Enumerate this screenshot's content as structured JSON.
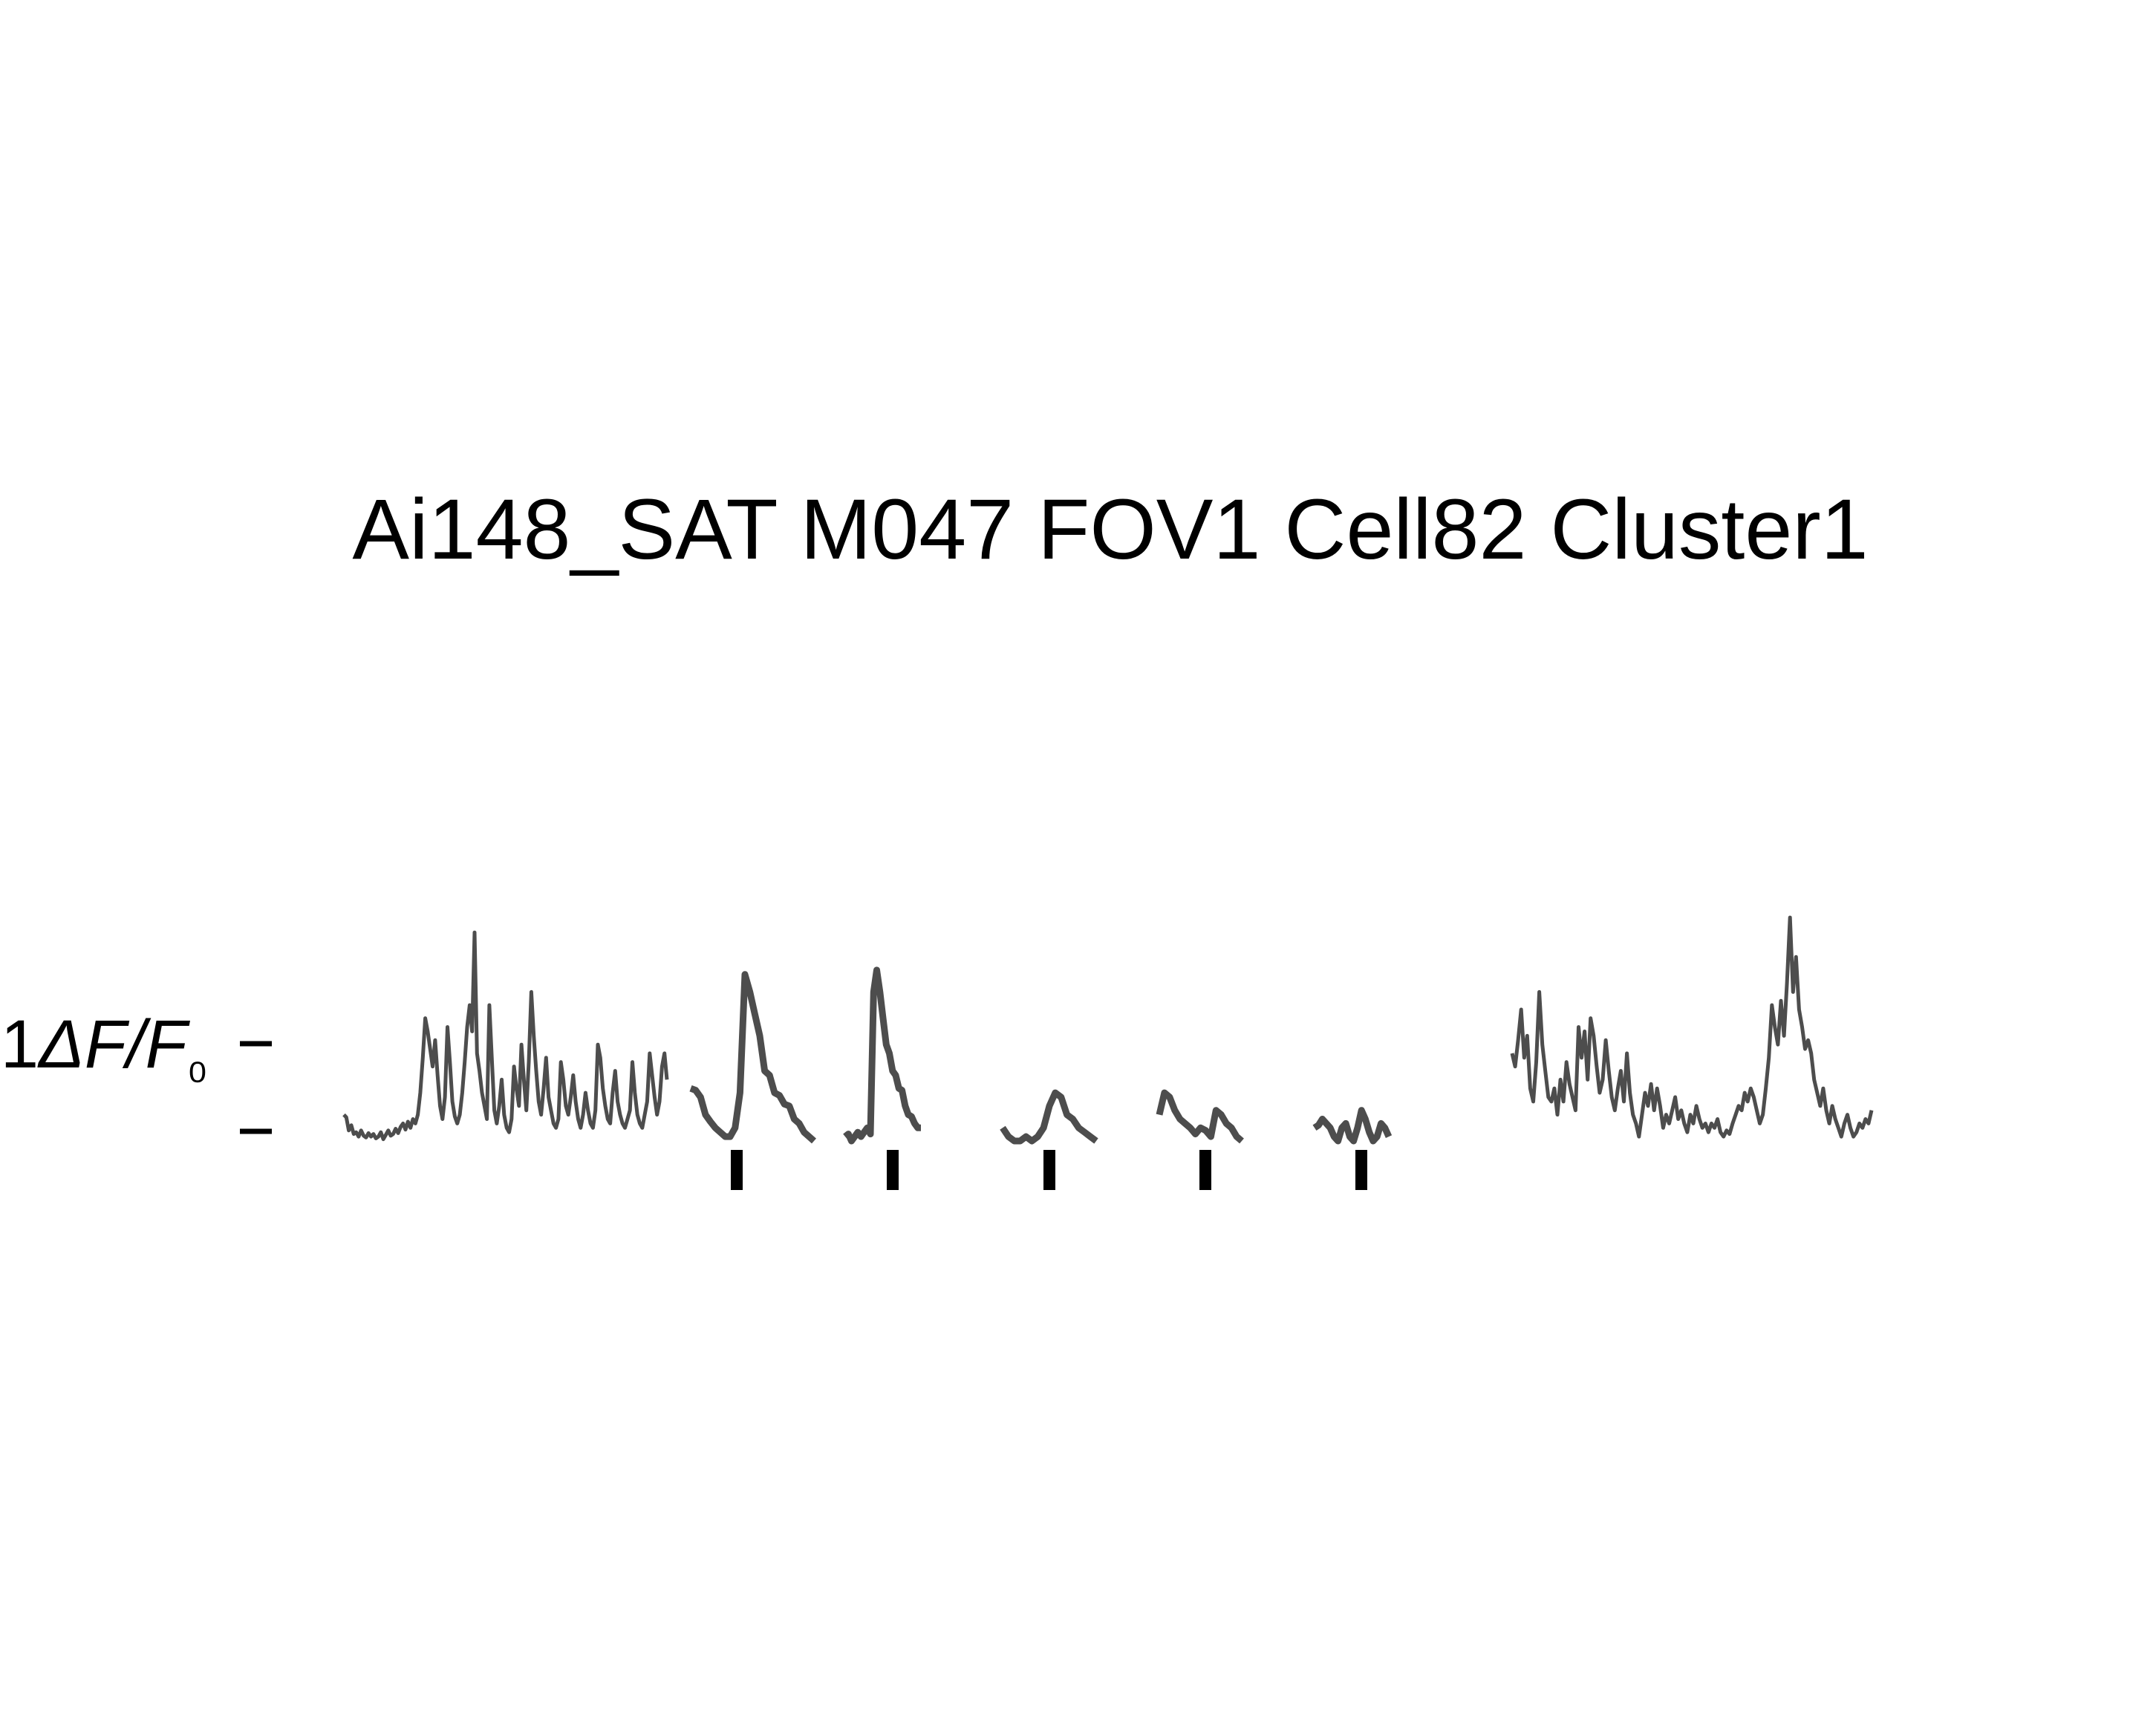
{
  "chart_data": {
    "type": "line",
    "title": "Ai148_SAT M047 FOV1 Cell82 Cluster1",
    "scale_bar": {
      "label": "1ΔF/F₀",
      "value": 1
    },
    "trace_color": "#4d4d4d",
    "marker_color": "#000000",
    "series": [
      {
        "values": [
          0.3,
          0.27,
          0.12,
          0.18,
          0.08,
          0.1,
          0.05,
          0.12,
          0.06,
          0.04,
          0.09,
          0.05,
          0.08,
          0.03,
          0.05,
          0.1,
          0.02,
          0.07,
          0.12,
          0.06,
          0.08,
          0.14,
          0.09,
          0.16,
          0.2,
          0.13,
          0.22,
          0.15,
          0.25,
          0.2,
          0.3,
          0.55,
          0.95,
          1.4,
          1.25,
          1.05,
          0.85,
          1.15,
          0.75,
          0.4,
          0.25,
          0.5,
          1.3,
          0.9,
          0.45,
          0.28,
          0.2,
          0.3,
          0.55,
          0.9,
          1.3,
          1.55,
          1.25,
          2.38,
          1.0,
          0.8,
          0.55,
          0.4,
          0.25,
          1.55,
          0.95,
          0.35,
          0.2,
          0.4,
          0.7,
          0.3,
          0.15,
          0.1,
          0.25,
          0.85,
          0.6,
          0.4,
          1.1,
          0.7,
          0.35,
          0.9,
          1.7,
          1.2,
          0.8,
          0.45,
          0.3,
          0.6,
          0.95,
          0.5,
          0.35,
          0.2,
          0.15,
          0.25,
          0.9,
          0.7,
          0.4,
          0.3,
          0.5,
          0.75,
          0.45,
          0.25,
          0.15,
          0.3,
          0.55,
          0.35,
          0.2,
          0.15,
          0.35,
          1.1,
          0.95,
          0.6,
          0.4,
          0.25,
          0.2,
          0.55,
          0.8,
          0.45,
          0.3,
          0.2,
          0.15,
          0.25,
          0.35,
          0.9,
          0.55,
          0.3,
          0.2,
          0.15,
          0.3,
          0.45,
          1.0,
          0.75,
          0.5,
          0.3,
          0.45,
          0.85,
          1.0,
          0.7
        ]
      },
      {
        "values": [
          0.6,
          0.58,
          0.5,
          0.3,
          0.22,
          0.15,
          0.1,
          0.05,
          0.05,
          0.15,
          0.55,
          1.9,
          1.7,
          1.45,
          1.2,
          0.8,
          0.75,
          0.55,
          0.52,
          0.42,
          0.4,
          0.25,
          0.2,
          0.1,
          0.05,
          0.0
        ]
      },
      {
        "values": [
          0.05,
          0.08,
          0.0,
          0.05,
          0.1,
          0.05,
          0.1,
          0.15,
          0.08,
          1.7,
          1.95,
          1.7,
          1.4,
          1.1,
          1.0,
          0.8,
          0.75,
          0.6,
          0.58,
          0.4,
          0.3,
          0.28,
          0.2,
          0.15,
          0.15
        ]
      },
      {
        "values": [
          0.15,
          0.05,
          0.0,
          0.0,
          0.05,
          0.0,
          0.05,
          0.15,
          0.4,
          0.55,
          0.5,
          0.3,
          0.25,
          0.15,
          0.1,
          0.05,
          0.0
        ]
      },
      {
        "values": [
          0.3,
          0.55,
          0.5,
          0.35,
          0.25,
          0.2,
          0.15,
          0.08,
          0.15,
          0.12,
          0.05,
          0.35,
          0.3,
          0.2,
          0.15,
          0.05,
          0.0
        ]
      },
      {
        "values": [
          0.15,
          0.18,
          0.25,
          0.2,
          0.15,
          0.05,
          0.0,
          0.15,
          0.2,
          0.05,
          0.0,
          0.15,
          0.35,
          0.25,
          0.1,
          0.0,
          0.05,
          0.2,
          0.15,
          0.05
        ]
      },
      {
        "values": [
          1.0,
          0.85,
          1.15,
          1.5,
          0.95,
          1.2,
          0.6,
          0.45,
          0.9,
          1.7,
          1.1,
          0.8,
          0.5,
          0.45,
          0.6,
          0.3,
          0.7,
          0.45,
          0.9,
          0.65,
          0.5,
          0.35,
          1.3,
          0.95,
          1.25,
          0.7,
          1.4,
          1.2,
          0.85,
          0.55,
          0.7,
          1.15,
          0.8,
          0.5,
          0.35,
          0.6,
          0.8,
          0.45,
          1.0,
          0.55,
          0.3,
          0.2,
          0.05,
          0.3,
          0.55,
          0.4,
          0.65,
          0.35,
          0.6,
          0.4,
          0.15,
          0.3,
          0.2,
          0.35,
          0.5,
          0.25,
          0.35,
          0.2,
          0.1,
          0.3,
          0.2,
          0.4,
          0.25,
          0.15,
          0.2,
          0.1,
          0.2,
          0.15,
          0.25,
          0.1,
          0.05,
          0.12,
          0.08,
          0.2,
          0.3,
          0.4,
          0.35,
          0.55,
          0.45,
          0.6,
          0.5,
          0.35,
          0.2,
          0.3,
          0.6,
          0.95,
          1.55,
          1.3,
          1.1,
          1.6,
          1.2,
          1.8,
          2.55,
          1.7,
          2.1,
          1.5,
          1.3,
          1.05,
          1.15,
          1.0,
          0.7,
          0.55,
          0.4,
          0.6,
          0.35,
          0.2,
          0.4,
          0.25,
          0.15,
          0.05,
          0.2,
          0.3,
          0.15,
          0.05,
          0.1,
          0.2,
          0.15,
          0.25,
          0.2,
          0.35
        ]
      }
    ],
    "event_markers": 5
  }
}
